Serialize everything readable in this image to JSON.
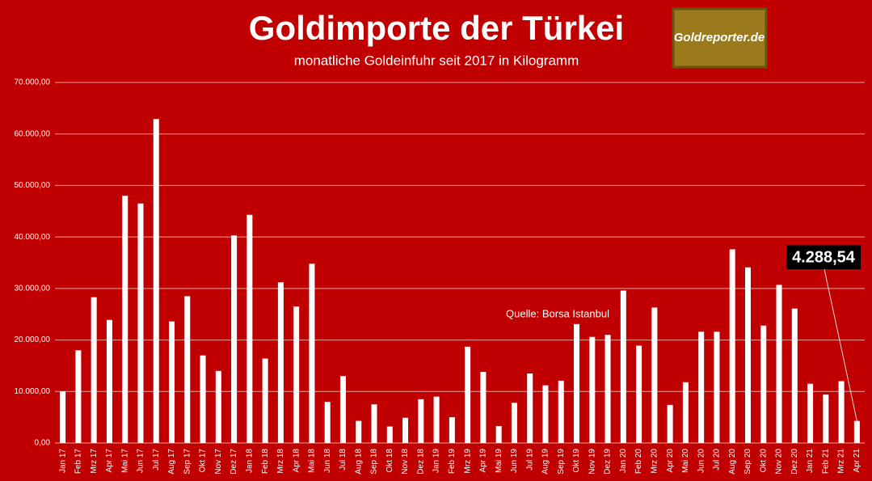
{
  "chart_data": {
    "type": "bar",
    "title": "Goldimporte der Türkei",
    "subtitle": "monatliche Goldeinfuhr seit 2017 in Kilogramm",
    "annotation": "Quelle: Borsa Istanbul",
    "logo": "Goldreporter.de",
    "categories": [
      "Jan 17",
      "Feb 17",
      "Mrz 17",
      "Apr 17",
      "Mai 17",
      "Jun 17",
      "Jul 17",
      "Aug 17",
      "Sep 17",
      "Okt 17",
      "Nov 17",
      "Dez 17",
      "Jan 18",
      "Feb 18",
      "Mrz 18",
      "Apr 18",
      "Mai 18",
      "Jun 18",
      "Jul 18",
      "Aug 18",
      "Sep 18",
      "Okt 18",
      "Nov 18",
      "Dez 18",
      "Jan 19",
      "Feb 19",
      "Mrz 19",
      "Apr 19",
      "Mai 19",
      "Jun 19",
      "Jul 19",
      "Aug 19",
      "Sep 19",
      "Okt 19",
      "Nov 19",
      "Dez 19",
      "Jan 20",
      "Feb 20",
      "Mrz 20",
      "Apr 20",
      "Mai 20",
      "Jun 20",
      "Jul 20",
      "Aug 20",
      "Sep 20",
      "Okt 20",
      "Nov 20",
      "Dez 20",
      "Jan 21",
      "Feb 21",
      "Mrz 21",
      "Apr 21"
    ],
    "values": [
      10000,
      18000,
      28300,
      23900,
      48000,
      46500,
      62900,
      23600,
      28500,
      17000,
      14000,
      40300,
      44300,
      16400,
      31200,
      26500,
      34800,
      8000,
      13000,
      4300,
      7500,
      3200,
      4900,
      8500,
      9000,
      5000,
      18700,
      13800,
      3300,
      7800,
      13500,
      11200,
      12100,
      23100,
      20600,
      21000,
      29600,
      18900,
      26300,
      7400,
      11800,
      21600,
      21600,
      37600,
      34100,
      22800,
      30700,
      26100,
      11500,
      9400,
      12000,
      4288.54
    ],
    "value_labels": [
      null,
      null,
      null,
      null,
      null,
      null,
      null,
      null,
      null,
      null,
      null,
      null,
      null,
      null,
      null,
      null,
      null,
      null,
      null,
      null,
      null,
      null,
      null,
      null,
      null,
      null,
      null,
      null,
      null,
      null,
      null,
      null,
      null,
      null,
      null,
      null,
      null,
      null,
      null,
      null,
      null,
      null,
      null,
      null,
      null,
      null,
      null,
      null,
      null,
      null,
      null,
      "4.288,54"
    ],
    "color": "#ffffff",
    "ylim": [
      0,
      70000
    ],
    "yticks": [
      {
        "value": 0,
        "label": "0,00"
      },
      {
        "value": 10000,
        "label": "10.000,00"
      },
      {
        "value": 20000,
        "label": "20.000,00"
      },
      {
        "value": 30000,
        "label": "30.000,00"
      },
      {
        "value": 40000,
        "label": "40.000,00"
      },
      {
        "value": 50000,
        "label": "50.000,00"
      },
      {
        "value": 60000,
        "label": "60.000,00"
      },
      {
        "value": 70000,
        "label": "70.000,00"
      }
    ],
    "grid": true
  }
}
